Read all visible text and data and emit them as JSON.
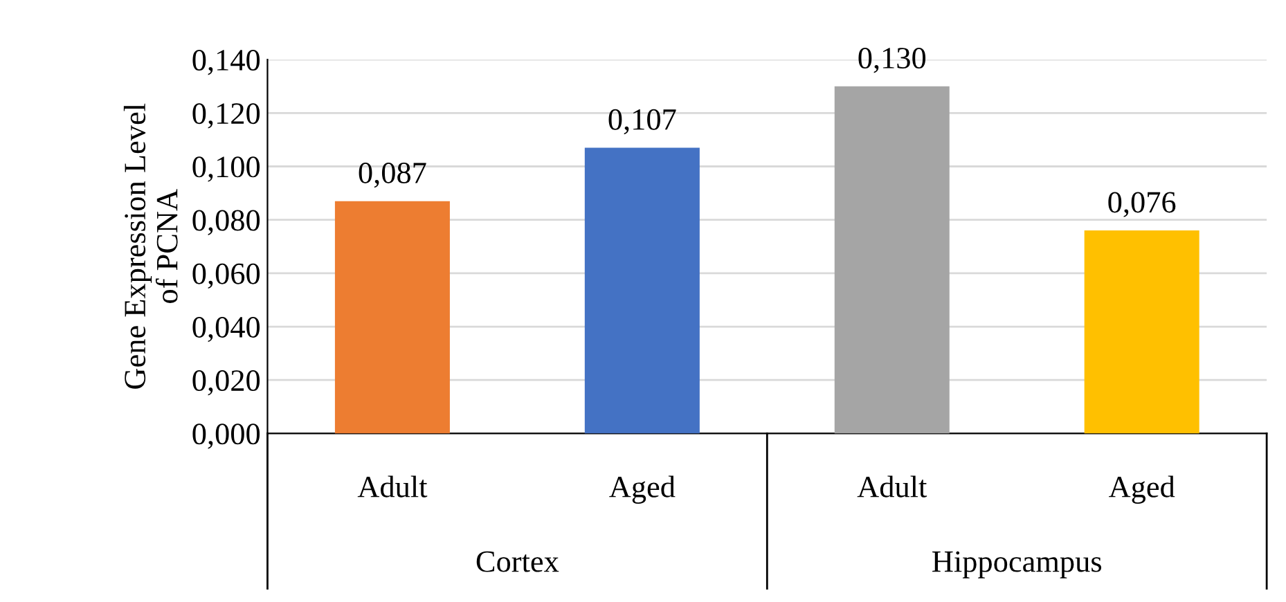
{
  "chart_data": {
    "type": "bar",
    "ylabel": "Gene Expression Level\nof PCNA",
    "categories": [
      "Adult",
      "Aged",
      "Adult",
      "Aged"
    ],
    "annotations": [
      "Cortex",
      "Hippocampus"
    ],
    "values": [
      0.087,
      0.107,
      0.13,
      0.076
    ],
    "colors": [
      "#ed7d31",
      "#4472c4",
      "#a5a5a5",
      "#ffc000"
    ],
    "value_labels": [
      "0,087",
      "0,107",
      "0,130",
      "0,076"
    ],
    "ylim": [
      0,
      0.14
    ],
    "yticks": [
      {
        "value": 0,
        "label": "0,000"
      },
      {
        "value": 0.02,
        "label": "0,020"
      },
      {
        "value": 0.04,
        "label": "0,040"
      },
      {
        "value": 0.06,
        "label": "0,060"
      },
      {
        "value": 0.08,
        "label": "0,080"
      },
      {
        "value": 0.1,
        "label": "0,100"
      },
      {
        "value": 0.12,
        "label": "0,120"
      },
      {
        "value": 0.14,
        "label": "0,140"
      }
    ],
    "grid": "y",
    "legend": false
  }
}
